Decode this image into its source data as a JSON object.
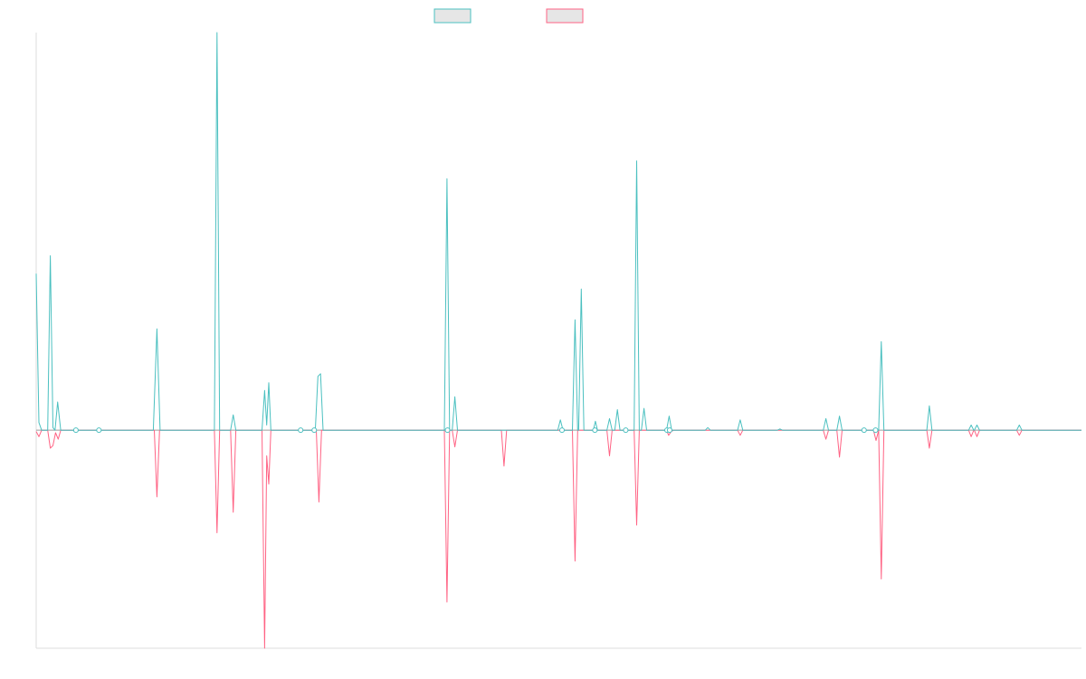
{
  "chart_data": {
    "type": "line",
    "title": "",
    "xlabel": "",
    "ylabel": "",
    "grid": false,
    "legend": "top-center",
    "xlim": [
      0,
      100
    ],
    "ylim": [
      -8.5,
      15.5
    ],
    "colors": {
      "series_a": "#4bc0c0",
      "series_b": "#ff6384",
      "axis": "#dddddd",
      "legend_fill": "#e6e6e6"
    },
    "series": [
      {
        "key": "a",
        "name": "",
        "color": "#4bc0c0",
        "points": [
          [
            0,
            6.1
          ],
          [
            0.26,
            0.3
          ],
          [
            0.52,
            0
          ],
          [
            1.1,
            0
          ],
          [
            1.35,
            6.8
          ],
          [
            1.6,
            0.1
          ],
          [
            1.8,
            0
          ],
          [
            2.05,
            1.1
          ],
          [
            2.35,
            0
          ],
          [
            11.2,
            0
          ],
          [
            11.55,
            3.95
          ],
          [
            11.85,
            0
          ],
          [
            17.05,
            0
          ],
          [
            17.3,
            15.5
          ],
          [
            17.55,
            0
          ],
          [
            18.6,
            0
          ],
          [
            18.85,
            0.6
          ],
          [
            19.1,
            0
          ],
          [
            21.6,
            0
          ],
          [
            21.85,
            1.55
          ],
          [
            22.05,
            0.2
          ],
          [
            22.25,
            1.85
          ],
          [
            22.45,
            0
          ],
          [
            26.7,
            0
          ],
          [
            26.95,
            2.1
          ],
          [
            27.2,
            2.2
          ],
          [
            27.45,
            0
          ],
          [
            39.05,
            0
          ],
          [
            39.3,
            9.8
          ],
          [
            39.55,
            0
          ],
          [
            39.8,
            0
          ],
          [
            40.05,
            1.3
          ],
          [
            40.3,
            0
          ],
          [
            49.9,
            0
          ],
          [
            50.15,
            0.4
          ],
          [
            50.4,
            0
          ],
          [
            51.3,
            0
          ],
          [
            51.55,
            4.3
          ],
          [
            51.8,
            0
          ],
          [
            51.9,
            0
          ],
          [
            52.15,
            5.5
          ],
          [
            52.4,
            0
          ],
          [
            53.3,
            0
          ],
          [
            53.5,
            0.35
          ],
          [
            53.7,
            0
          ],
          [
            54.6,
            0
          ],
          [
            54.85,
            0.45
          ],
          [
            55.1,
            0
          ],
          [
            55.35,
            0
          ],
          [
            55.6,
            0.8
          ],
          [
            55.85,
            0
          ],
          [
            57.2,
            0
          ],
          [
            57.45,
            10.5
          ],
          [
            57.7,
            0
          ],
          [
            57.9,
            0
          ],
          [
            58.15,
            0.85
          ],
          [
            58.4,
            0
          ],
          [
            60.3,
            0
          ],
          [
            60.55,
            0.55
          ],
          [
            60.8,
            0
          ],
          [
            64.0,
            0
          ],
          [
            64.25,
            0.1
          ],
          [
            64.5,
            0
          ],
          [
            67.1,
            0
          ],
          [
            67.35,
            0.4
          ],
          [
            67.6,
            0
          ],
          [
            70.9,
            0
          ],
          [
            71.15,
            0.05
          ],
          [
            71.4,
            0
          ],
          [
            75.3,
            0
          ],
          [
            75.55,
            0.45
          ],
          [
            75.8,
            0
          ],
          [
            76.6,
            0
          ],
          [
            76.85,
            0.55
          ],
          [
            77.1,
            0
          ],
          [
            80.6,
            0
          ],
          [
            80.85,
            3.45
          ],
          [
            81.1,
            0
          ],
          [
            85.2,
            0
          ],
          [
            85.45,
            0.95
          ],
          [
            85.7,
            0
          ],
          [
            89.2,
            0
          ],
          [
            89.45,
            0.2
          ],
          [
            89.7,
            0
          ],
          [
            89.75,
            0
          ],
          [
            90.0,
            0.2
          ],
          [
            90.25,
            0
          ],
          [
            93.8,
            0
          ],
          [
            94.05,
            0.2
          ],
          [
            94.3,
            0
          ],
          [
            100,
            0
          ]
        ]
      },
      {
        "key": "b",
        "name": "",
        "color": "#ff6384",
        "points": [
          [
            0,
            -0.05
          ],
          [
            0.26,
            -0.25
          ],
          [
            0.52,
            0
          ],
          [
            1.1,
            0
          ],
          [
            1.35,
            -0.7
          ],
          [
            1.6,
            -0.6
          ],
          [
            1.85,
            -0.1
          ],
          [
            2.1,
            -0.35
          ],
          [
            2.35,
            0
          ],
          [
            11.3,
            0
          ],
          [
            11.55,
            -2.6
          ],
          [
            11.8,
            0
          ],
          [
            17.05,
            0
          ],
          [
            17.3,
            -4.0
          ],
          [
            17.55,
            0
          ],
          [
            18.6,
            0
          ],
          [
            18.85,
            -3.2
          ],
          [
            19.1,
            0
          ],
          [
            21.6,
            0
          ],
          [
            21.85,
            -8.5
          ],
          [
            22.05,
            -1.0
          ],
          [
            22.25,
            -2.1
          ],
          [
            22.45,
            0
          ],
          [
            26.8,
            0
          ],
          [
            27.05,
            -2.8
          ],
          [
            27.3,
            0
          ],
          [
            39.05,
            0
          ],
          [
            39.3,
            -6.7
          ],
          [
            39.55,
            0
          ],
          [
            39.8,
            0
          ],
          [
            40.05,
            -0.65
          ],
          [
            40.3,
            0
          ],
          [
            44.5,
            0
          ],
          [
            44.75,
            -1.4
          ],
          [
            45.0,
            0
          ],
          [
            51.3,
            0
          ],
          [
            51.55,
            -5.1
          ],
          [
            51.8,
            0
          ],
          [
            54.6,
            0
          ],
          [
            54.85,
            -1.0
          ],
          [
            55.1,
            0
          ],
          [
            57.2,
            0
          ],
          [
            57.45,
            -3.7
          ],
          [
            57.7,
            0
          ],
          [
            60.3,
            0
          ],
          [
            60.5,
            -0.2
          ],
          [
            60.75,
            -0.05
          ],
          [
            61.0,
            0
          ],
          [
            67.1,
            0
          ],
          [
            67.35,
            -0.2
          ],
          [
            67.6,
            0
          ],
          [
            75.3,
            0
          ],
          [
            75.55,
            -0.35
          ],
          [
            75.8,
            0
          ],
          [
            76.6,
            0
          ],
          [
            76.85,
            -1.05
          ],
          [
            77.1,
            0
          ],
          [
            80.1,
            0
          ],
          [
            80.35,
            -0.4
          ],
          [
            80.6,
            0
          ],
          [
            80.6,
            0
          ],
          [
            80.85,
            -5.8
          ],
          [
            81.1,
            0
          ],
          [
            85.2,
            0
          ],
          [
            85.45,
            -0.7
          ],
          [
            85.7,
            0
          ],
          [
            89.2,
            0
          ],
          [
            89.45,
            -0.25
          ],
          [
            89.7,
            0
          ],
          [
            89.75,
            0
          ],
          [
            90.0,
            -0.25
          ],
          [
            90.25,
            0
          ],
          [
            93.8,
            0
          ],
          [
            94.05,
            -0.2
          ],
          [
            94.3,
            0
          ],
          [
            100,
            0
          ]
        ]
      }
    ],
    "markers": [
      [
        3.8,
        0
      ],
      [
        6.0,
        0
      ],
      [
        25.3,
        0
      ],
      [
        26.6,
        0
      ],
      [
        39.35,
        0
      ],
      [
        50.3,
        0
      ],
      [
        53.45,
        0
      ],
      [
        56.4,
        0
      ],
      [
        60.35,
        0
      ],
      [
        60.6,
        0
      ],
      [
        79.2,
        0
      ],
      [
        80.3,
        0
      ]
    ]
  }
}
